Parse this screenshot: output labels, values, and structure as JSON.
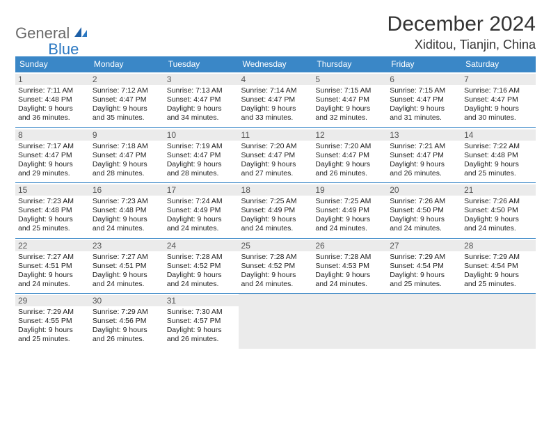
{
  "logo": {
    "text1": "General",
    "text2": "Blue"
  },
  "title": "December 2024",
  "location": "Xiditou, Tianjin, China",
  "colors": {
    "header_bg": "#3a87c7",
    "header_text": "#ffffff",
    "shaded_bg": "#ebebeb",
    "border": "#3a87c7",
    "page_bg": "#ffffff",
    "title_color": "#333333",
    "logo_gray": "#6a6a6a",
    "logo_blue": "#2b78c2"
  },
  "dayNames": [
    "Sunday",
    "Monday",
    "Tuesday",
    "Wednesday",
    "Thursday",
    "Friday",
    "Saturday"
  ],
  "weeks": [
    [
      {
        "n": "1",
        "sr": "Sunrise: 7:11 AM",
        "ss": "Sunset: 4:48 PM",
        "d1": "Daylight: 9 hours",
        "d2": "and 36 minutes."
      },
      {
        "n": "2",
        "sr": "Sunrise: 7:12 AM",
        "ss": "Sunset: 4:47 PM",
        "d1": "Daylight: 9 hours",
        "d2": "and 35 minutes."
      },
      {
        "n": "3",
        "sr": "Sunrise: 7:13 AM",
        "ss": "Sunset: 4:47 PM",
        "d1": "Daylight: 9 hours",
        "d2": "and 34 minutes."
      },
      {
        "n": "4",
        "sr": "Sunrise: 7:14 AM",
        "ss": "Sunset: 4:47 PM",
        "d1": "Daylight: 9 hours",
        "d2": "and 33 minutes."
      },
      {
        "n": "5",
        "sr": "Sunrise: 7:15 AM",
        "ss": "Sunset: 4:47 PM",
        "d1": "Daylight: 9 hours",
        "d2": "and 32 minutes."
      },
      {
        "n": "6",
        "sr": "Sunrise: 7:15 AM",
        "ss": "Sunset: 4:47 PM",
        "d1": "Daylight: 9 hours",
        "d2": "and 31 minutes."
      },
      {
        "n": "7",
        "sr": "Sunrise: 7:16 AM",
        "ss": "Sunset: 4:47 PM",
        "d1": "Daylight: 9 hours",
        "d2": "and 30 minutes."
      }
    ],
    [
      {
        "n": "8",
        "sr": "Sunrise: 7:17 AM",
        "ss": "Sunset: 4:47 PM",
        "d1": "Daylight: 9 hours",
        "d2": "and 29 minutes."
      },
      {
        "n": "9",
        "sr": "Sunrise: 7:18 AM",
        "ss": "Sunset: 4:47 PM",
        "d1": "Daylight: 9 hours",
        "d2": "and 28 minutes."
      },
      {
        "n": "10",
        "sr": "Sunrise: 7:19 AM",
        "ss": "Sunset: 4:47 PM",
        "d1": "Daylight: 9 hours",
        "d2": "and 28 minutes."
      },
      {
        "n": "11",
        "sr": "Sunrise: 7:20 AM",
        "ss": "Sunset: 4:47 PM",
        "d1": "Daylight: 9 hours",
        "d2": "and 27 minutes."
      },
      {
        "n": "12",
        "sr": "Sunrise: 7:20 AM",
        "ss": "Sunset: 4:47 PM",
        "d1": "Daylight: 9 hours",
        "d2": "and 26 minutes."
      },
      {
        "n": "13",
        "sr": "Sunrise: 7:21 AM",
        "ss": "Sunset: 4:47 PM",
        "d1": "Daylight: 9 hours",
        "d2": "and 26 minutes."
      },
      {
        "n": "14",
        "sr": "Sunrise: 7:22 AM",
        "ss": "Sunset: 4:48 PM",
        "d1": "Daylight: 9 hours",
        "d2": "and 25 minutes."
      }
    ],
    [
      {
        "n": "15",
        "sr": "Sunrise: 7:23 AM",
        "ss": "Sunset: 4:48 PM",
        "d1": "Daylight: 9 hours",
        "d2": "and 25 minutes."
      },
      {
        "n": "16",
        "sr": "Sunrise: 7:23 AM",
        "ss": "Sunset: 4:48 PM",
        "d1": "Daylight: 9 hours",
        "d2": "and 24 minutes."
      },
      {
        "n": "17",
        "sr": "Sunrise: 7:24 AM",
        "ss": "Sunset: 4:49 PM",
        "d1": "Daylight: 9 hours",
        "d2": "and 24 minutes."
      },
      {
        "n": "18",
        "sr": "Sunrise: 7:25 AM",
        "ss": "Sunset: 4:49 PM",
        "d1": "Daylight: 9 hours",
        "d2": "and 24 minutes."
      },
      {
        "n": "19",
        "sr": "Sunrise: 7:25 AM",
        "ss": "Sunset: 4:49 PM",
        "d1": "Daylight: 9 hours",
        "d2": "and 24 minutes."
      },
      {
        "n": "20",
        "sr": "Sunrise: 7:26 AM",
        "ss": "Sunset: 4:50 PM",
        "d1": "Daylight: 9 hours",
        "d2": "and 24 minutes."
      },
      {
        "n": "21",
        "sr": "Sunrise: 7:26 AM",
        "ss": "Sunset: 4:50 PM",
        "d1": "Daylight: 9 hours",
        "d2": "and 24 minutes."
      }
    ],
    [
      {
        "n": "22",
        "sr": "Sunrise: 7:27 AM",
        "ss": "Sunset: 4:51 PM",
        "d1": "Daylight: 9 hours",
        "d2": "and 24 minutes."
      },
      {
        "n": "23",
        "sr": "Sunrise: 7:27 AM",
        "ss": "Sunset: 4:51 PM",
        "d1": "Daylight: 9 hours",
        "d2": "and 24 minutes."
      },
      {
        "n": "24",
        "sr": "Sunrise: 7:28 AM",
        "ss": "Sunset: 4:52 PM",
        "d1": "Daylight: 9 hours",
        "d2": "and 24 minutes."
      },
      {
        "n": "25",
        "sr": "Sunrise: 7:28 AM",
        "ss": "Sunset: 4:52 PM",
        "d1": "Daylight: 9 hours",
        "d2": "and 24 minutes."
      },
      {
        "n": "26",
        "sr": "Sunrise: 7:28 AM",
        "ss": "Sunset: 4:53 PM",
        "d1": "Daylight: 9 hours",
        "d2": "and 24 minutes."
      },
      {
        "n": "27",
        "sr": "Sunrise: 7:29 AM",
        "ss": "Sunset: 4:54 PM",
        "d1": "Daylight: 9 hours",
        "d2": "and 25 minutes."
      },
      {
        "n": "28",
        "sr": "Sunrise: 7:29 AM",
        "ss": "Sunset: 4:54 PM",
        "d1": "Daylight: 9 hours",
        "d2": "and 25 minutes."
      }
    ],
    [
      {
        "n": "29",
        "sr": "Sunrise: 7:29 AM",
        "ss": "Sunset: 4:55 PM",
        "d1": "Daylight: 9 hours",
        "d2": "and 25 minutes."
      },
      {
        "n": "30",
        "sr": "Sunrise: 7:29 AM",
        "ss": "Sunset: 4:56 PM",
        "d1": "Daylight: 9 hours",
        "d2": "and 26 minutes."
      },
      {
        "n": "31",
        "sr": "Sunrise: 7:30 AM",
        "ss": "Sunset: 4:57 PM",
        "d1": "Daylight: 9 hours",
        "d2": "and 26 minutes."
      },
      null,
      null,
      null,
      null
    ]
  ]
}
